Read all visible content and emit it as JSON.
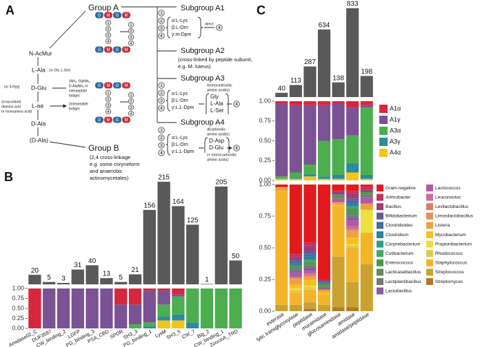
{
  "panel_a": {
    "label": "A",
    "group_a": "Group A",
    "group_b": "Group B",
    "group_b_note": [
      "(2,4 cross-linkage",
      "e.g. some coryneform",
      "and anaerobic",
      "actinomycetales)"
    ],
    "chain": [
      "N-AcMur",
      "L-Ala",
      "D-Glu",
      "L-aa",
      "D-Ala",
      "(D-Ala)"
    ],
    "chain_notes": {
      "l_ala": "(or Gly, L-Ser)",
      "d_glu_left": "(or 3-Hyg)",
      "d_glu_right": [
        "(NH₂, GlyNH₂,",
        "D-AlaNH₂ or",
        "interpeptide",
        "bridge)"
      ],
      "l_aa_left": [
        "(cross-linked",
        "diamino acid",
        "or monoamino acid)"
      ],
      "l_aa_right": [
        "(interpeptide",
        "bridge)"
      ]
    },
    "steps": [
      "1",
      "2",
      "3",
      "4"
    ],
    "glycan": [
      "G",
      "M"
    ],
    "subgroups": [
      {
        "title": "Subgroup A1",
        "variants": [
          "α:L-Lys",
          "β:L-Orn",
          "γ:m-Dpm"
        ],
        "link": "direct"
      },
      {
        "title": "Subgroup A2",
        "note": [
          "(cross-linked by peptide subunit,",
          "e.g. M. luteus)"
        ]
      },
      {
        "title": "Subgroup A3",
        "variants": [
          "α:L-Lys",
          "β:L-Orn",
          "γ:L,L-Dpm"
        ],
        "bridge_note": [
          "monocarboxilic",
          "amino acid(s)"
        ],
        "bridge": [
          "Gly",
          "L-Ala",
          "L-Ser"
        ]
      },
      {
        "title": "Subgroup A4",
        "variants": [
          "α:L-Lys",
          "β:L-Orn",
          "γ:L,L-Dpm"
        ],
        "bridge_note": [
          "dicarboxilic",
          "amino acid(s)"
        ],
        "bridge": [
          "D-Asp",
          "D-Glu",
          "(+ monocarboxilic",
          "amino acids)"
        ]
      }
    ]
  },
  "chart_data": [
    {
      "panel": "B",
      "type": "stacked_bar",
      "categories": [
        "Amidase02_C",
        "DUF3597",
        "CW_binding_2",
        "LGFP",
        "PG_binding_3",
        "PSA_CBD",
        "SPOR",
        "SH3_3",
        "PG_binding_1",
        "LysM",
        "SH3_5",
        "CW_7",
        "Big_2",
        "CW_binding_1",
        "ZoocinA_TRD"
      ],
      "counts": [
        20,
        5,
        3,
        31,
        40,
        13,
        5,
        21,
        156,
        215,
        164,
        125,
        1,
        205,
        50
      ],
      "count_color": "#595959",
      "panels": [
        {
          "ylim": [
            0,
            1
          ],
          "yticks": [
            {
              "value": 0,
              "label": "0.00"
            },
            {
              "value": 0.25,
              "label": "0.25"
            },
            {
              "value": 0.5,
              "label": "0.50"
            },
            {
              "value": 0.75,
              "label": "0.75"
            },
            {
              "value": 1,
              "label": "1.00"
            }
          ],
          "series": [
            {
              "color": "#d7263d",
              "values": [
                1,
                0,
                0,
                0,
                0,
                0,
                0.4,
                0.4,
                0.05,
                0.05,
                0.15,
                0,
                0,
                0,
                0
              ]
            },
            {
              "color": "#7b5294",
              "values": [
                0,
                1,
                1,
                1,
                1,
                1,
                0.6,
                0.5,
                0.8,
                0.35,
                0.05,
                0,
                0,
                0,
                0
              ]
            },
            {
              "color": "#4cae4f",
              "values": [
                0,
                0,
                0,
                0,
                0,
                0,
                0,
                0.1,
                0.1,
                0.3,
                0.45,
                0.85,
                1,
                1,
                1
              ]
            },
            {
              "color": "#2a8c9c",
              "values": [
                0,
                0,
                0,
                0,
                0,
                0,
                0,
                0,
                0.05,
                0.1,
                0.15,
                0.15,
                0,
                0,
                0
              ]
            },
            {
              "color": "#f6c31c",
              "values": [
                0,
                0,
                0,
                0,
                0,
                0,
                0,
                0,
                0,
                0.2,
                0.2,
                0,
                0,
                0,
                0
              ]
            }
          ]
        }
      ]
    },
    {
      "panel": "C",
      "type": "stacked_bar",
      "categories": [
        "esterase",
        "lytic transglycosylase",
        "peptidase",
        "muramidase",
        "glucosaminidase",
        "amidase",
        "amidase/peptidase"
      ],
      "counts": [
        40,
        113,
        287,
        634,
        138,
        833,
        198
      ],
      "count_color": "#595959",
      "panels": [
        {
          "ylim": [
            0,
            1
          ],
          "yticks": [
            {
              "value": 0,
              "label": "0.00"
            },
            {
              "value": 0.25,
              "label": "0.25"
            },
            {
              "value": 0.5,
              "label": "0.50"
            },
            {
              "value": 0.75,
              "label": "0.75"
            },
            {
              "value": 1,
              "label": "1.00"
            }
          ],
          "legend": "right",
          "series": [
            {
              "name": "A1α",
              "color": "#d7263d",
              "values": [
                0.03,
                0.05,
                0.05,
                0.05,
                0.03,
                0.08,
                0.05
              ]
            },
            {
              "name": "A1γ",
              "color": "#7b5294",
              "values": [
                0.92,
                0.85,
                0.75,
                0.45,
                0.45,
                0.35,
                0.03
              ]
            },
            {
              "name": "A3α",
              "color": "#4cae4f",
              "values": [
                0.03,
                0.07,
                0.12,
                0.45,
                0.45,
                0.35,
                0.85
              ]
            },
            {
              "name": "A3γ",
              "color": "#2a8c9c",
              "values": [
                0,
                0.01,
                0.03,
                0.03,
                0.05,
                0.12,
                0.05
              ]
            },
            {
              "name": "A4α",
              "color": "#f6c31c",
              "values": [
                0.02,
                0.02,
                0.05,
                0.02,
                0.02,
                0.1,
                0.02
              ]
            }
          ]
        },
        {
          "ylim": [
            0,
            1
          ],
          "yticks": [
            {
              "value": 0,
              "label": "0.00"
            },
            {
              "value": 0.25,
              "label": "0.25"
            },
            {
              "value": 0.5,
              "label": "0.50"
            },
            {
              "value": 0.75,
              "label": "0.75"
            },
            {
              "value": 1,
              "label": "1.00"
            }
          ],
          "legend": "right",
          "series": [
            {
              "name": "Gram-negative",
              "color": "#e31a1c",
              "values": [
                0.02,
                0.55,
                0.46,
                0.75,
                0.05,
                0.05,
                0.02
              ]
            },
            {
              "name": "Arthrobacter",
              "color": "#c0325a",
              "values": [
                0,
                0.02,
                0.02,
                0,
                0,
                0.02,
                0.02
              ]
            },
            {
              "name": "Bacillus",
              "color": "#a03c78",
              "values": [
                0,
                0.03,
                0.05,
                0.02,
                0.03,
                0.04,
                0.02
              ]
            },
            {
              "name": "Bifidobacterium",
              "color": "#6a5a9a",
              "values": [
                0,
                0,
                0.02,
                0,
                0,
                0.02,
                0
              ]
            },
            {
              "name": "Clostridioides",
              "color": "#3f6ea6",
              "values": [
                0,
                0.02,
                0.02,
                0.01,
                0,
                0.02,
                0
              ]
            },
            {
              "name": "Clostridium",
              "color": "#2e7fa0",
              "values": [
                0,
                0.02,
                0.02,
                0,
                0,
                0.02,
                0
              ]
            },
            {
              "name": "Corynebacterium",
              "color": "#2f9a8a",
              "values": [
                0,
                0,
                0.01,
                0,
                0.01,
                0.01,
                0
              ]
            },
            {
              "name": "Cutibacterium",
              "color": "#3fa86a",
              "values": [
                0,
                0,
                0.01,
                0,
                0,
                0.01,
                0
              ]
            },
            {
              "name": "Enterococcus",
              "color": "#4a9a4a",
              "values": [
                0,
                0.02,
                0.02,
                0.02,
                0.02,
                0.03,
                0.02
              ]
            },
            {
              "name": "Lacticaseibacillus",
              "color": "#5e8a5e",
              "values": [
                0,
                0,
                0.01,
                0.01,
                0,
                0.02,
                0
              ]
            },
            {
              "name": "Lactiplantibacillus",
              "color": "#707a7a",
              "values": [
                0,
                0.02,
                0.02,
                0.01,
                0,
                0.02,
                0.02
              ]
            },
            {
              "name": "Lactobacillus",
              "color": "#8a5aa0",
              "values": [
                0,
                0.02,
                0.02,
                0.01,
                0,
                0.02,
                0
              ]
            },
            {
              "name": "Lactococcus",
              "color": "#b05aa8",
              "values": [
                0,
                0.03,
                0.02,
                0,
                0.03,
                0.05,
                0.05
              ]
            },
            {
              "name": "Leuconostoc",
              "color": "#d06a9a",
              "values": [
                0,
                0.01,
                0.01,
                0,
                0,
                0.02,
                0
              ]
            },
            {
              "name": "Levilactobacillus",
              "color": "#e07a6a",
              "values": [
                0,
                0,
                0.01,
                0,
                0,
                0.01,
                0
              ]
            },
            {
              "name": "Limosilactobacillus",
              "color": "#e89060",
              "values": [
                0,
                0,
                0.01,
                0,
                0,
                0.01,
                0
              ]
            },
            {
              "name": "Listeria",
              "color": "#f0a040",
              "values": [
                0.03,
                0.05,
                0.02,
                0.02,
                0.02,
                0.05,
                0.05
              ]
            },
            {
              "name": "Mycobacterium",
              "color": "#f5c020",
              "values": [
                0,
                0.03,
                0.05,
                0.02,
                0.01,
                0.05,
                0
              ]
            },
            {
              "name": "Propionibacterium",
              "color": "#ece040",
              "values": [
                0,
                0.01,
                0.01,
                0,
                0,
                0.01,
                0.18
              ]
            },
            {
              "name": "Rhodococcus",
              "color": "#e0c850",
              "values": [
                0,
                0.02,
                0.02,
                0,
                0,
                0.02,
                0
              ]
            },
            {
              "name": "Staphylococcus",
              "color": "#f4b42a",
              "values": [
                0.9,
                0.1,
                0.1,
                0.08,
                0.4,
                0.27,
                0.25
              ]
            },
            {
              "name": "Streptococcus",
              "color": "#c9a232",
              "values": [
                0.05,
                0.05,
                0.05,
                0.05,
                0.4,
                0.2,
                0.37
              ]
            },
            {
              "name": "Streptomyces",
              "color": "#b07a28",
              "values": [
                0,
                0,
                0.02,
                0,
                0.03,
                0.03,
                0
              ]
            }
          ]
        }
      ]
    }
  ]
}
